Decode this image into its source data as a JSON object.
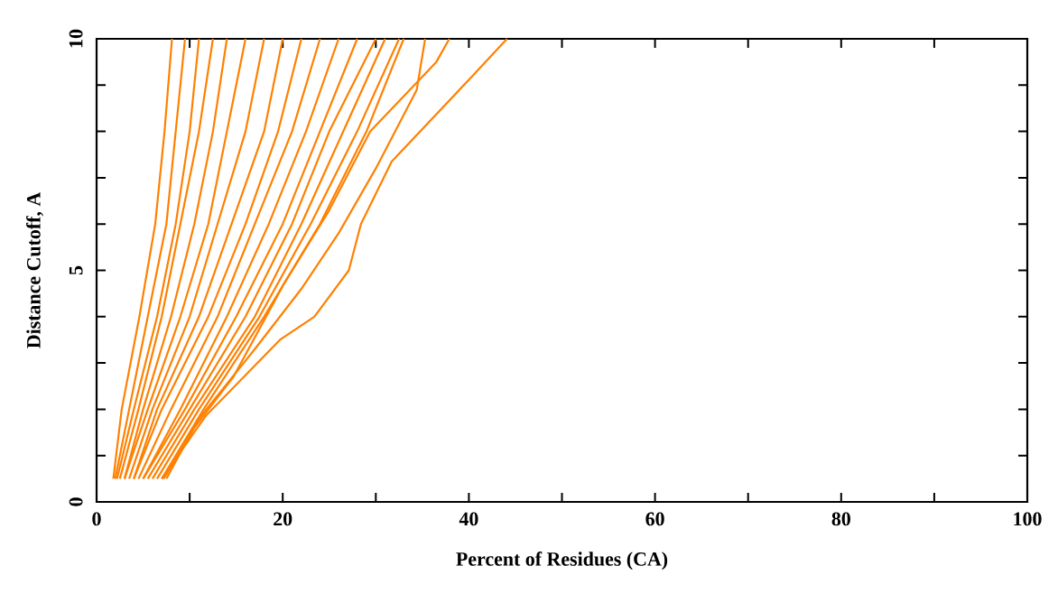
{
  "chart_data": {
    "type": "line",
    "xlabel": "Percent of Residues (CA)",
    "ylabel": "Distance Cutoff, A",
    "xlim": [
      0,
      100
    ],
    "ylim": [
      0,
      10
    ],
    "xticks": [
      0,
      {
        "value": 10,
        "label": null
      },
      20,
      {
        "value": 30,
        "label": null
      },
      40,
      {
        "value": 50,
        "label": null
      },
      60,
      {
        "value": 70,
        "label": null
      },
      80,
      {
        "value": 90,
        "label": null
      },
      100
    ],
    "yticks": [
      0,
      {
        "value": 1,
        "label": null
      },
      {
        "value": 2,
        "label": null
      },
      {
        "value": 3,
        "label": null
      },
      {
        "value": 4,
        "label": null
      },
      5,
      {
        "value": 6,
        "label": null
      },
      {
        "value": 7,
        "label": null
      },
      {
        "value": 8,
        "label": null
      },
      {
        "value": 9,
        "label": null
      },
      10
    ],
    "series": [
      {
        "color": "#ff8000",
        "x": [
          1.8,
          2.7,
          4.6,
          6.3,
          7.3,
          8.1
        ],
        "values": [
          0.5,
          2,
          4,
          6,
          8,
          10
        ]
      },
      {
        "color": "#ff8000",
        "x": [
          2,
          3.5,
          5.5,
          7.5,
          8.5,
          9.5
        ],
        "values": [
          0.5,
          2,
          4,
          6,
          8,
          10
        ]
      },
      {
        "color": "#ff8000",
        "x": [
          2.2,
          4,
          6.5,
          8.5,
          10,
          11
        ],
        "values": [
          0.5,
          2,
          4,
          6,
          8,
          10
        ]
      },
      {
        "color": "#ff8000",
        "x": [
          2.5,
          4.5,
          7,
          9,
          11,
          12.5
        ],
        "values": [
          0.5,
          2,
          4,
          6,
          8,
          10
        ]
      },
      {
        "color": "#ff8000",
        "x": [
          3,
          5,
          8,
          10.5,
          12.5,
          14
        ],
        "values": [
          0.5,
          2,
          4,
          6,
          8,
          10
        ]
      },
      {
        "color": "#ff8000",
        "x": [
          3,
          5.5,
          9,
          12,
          14,
          16
        ],
        "values": [
          0.5,
          2,
          4,
          6,
          8,
          10
        ]
      },
      {
        "color": "#ff8000",
        "x": [
          3.5,
          6,
          10,
          13,
          16,
          18
        ],
        "values": [
          0.5,
          2,
          4,
          6,
          8,
          10
        ]
      },
      {
        "color": "#ff8000",
        "x": [
          4,
          6.5,
          11,
          14.5,
          18,
          20
        ],
        "values": [
          0.5,
          2,
          4,
          6,
          8,
          10
        ]
      },
      {
        "color": "#ff8000",
        "x": [
          4,
          7,
          12,
          16,
          19.5,
          22
        ],
        "values": [
          0.5,
          2,
          4,
          6,
          8,
          10
        ]
      },
      {
        "color": "#ff8000",
        "x": [
          4.5,
          8,
          13,
          17,
          21,
          24
        ],
        "values": [
          0.5,
          2,
          4,
          6,
          8,
          10
        ]
      },
      {
        "color": "#ff8000",
        "x": [
          5,
          9,
          14,
          18.5,
          22.5,
          26
        ],
        "values": [
          0.5,
          2,
          4,
          6,
          8,
          10
        ]
      },
      {
        "color": "#ff8000",
        "x": [
          5,
          9.5,
          15,
          20,
          24,
          28
        ],
        "values": [
          0.5,
          2,
          4,
          6,
          8,
          10
        ]
      },
      {
        "color": "#ff8000",
        "x": [
          5.5,
          10,
          16,
          21,
          25,
          30
        ],
        "values": [
          0.5,
          2,
          4,
          6,
          8,
          10
        ]
      },
      {
        "color": "#ff8000",
        "x": [
          6,
          10.5,
          17,
          22,
          26.5,
          31
        ],
        "values": [
          0.5,
          2,
          4,
          6,
          8,
          10
        ]
      },
      {
        "color": "#ff8000",
        "x": [
          6.5,
          11,
          17.5,
          23,
          28,
          32.5
        ],
        "values": [
          0.5,
          2,
          4,
          6,
          8,
          10
        ]
      },
      {
        "color": "#ff8000",
        "x": [
          7,
          11.5,
          18,
          24,
          29,
          33
        ],
        "values": [
          0.5,
          2,
          4,
          6,
          8,
          10
        ]
      },
      {
        "color": "#ff8000",
        "x": [
          7.5,
          11,
          17,
          22,
          26,
          30,
          34.4,
          35.3
        ],
        "values": [
          0.5,
          1.8,
          3.3,
          4.6,
          5.8,
          7.2,
          8.9,
          10
        ]
      },
      {
        "color": "#ff8000",
        "x": [
          7.2,
          10.5,
          14.7,
          20.1,
          25,
          29.4,
          36.5,
          37.9
        ],
        "values": [
          0.5,
          1.6,
          2.7,
          4.7,
          6.3,
          8,
          9.5,
          10
        ]
      },
      {
        "color": "#ff8000",
        "x": [
          7,
          11.7,
          19.7,
          23.4,
          27.1,
          28.4,
          31.7,
          40.4,
          44.1
        ],
        "values": [
          0.5,
          1.85,
          3.5,
          4,
          5,
          6,
          7.35,
          9.2,
          10
        ]
      }
    ]
  }
}
